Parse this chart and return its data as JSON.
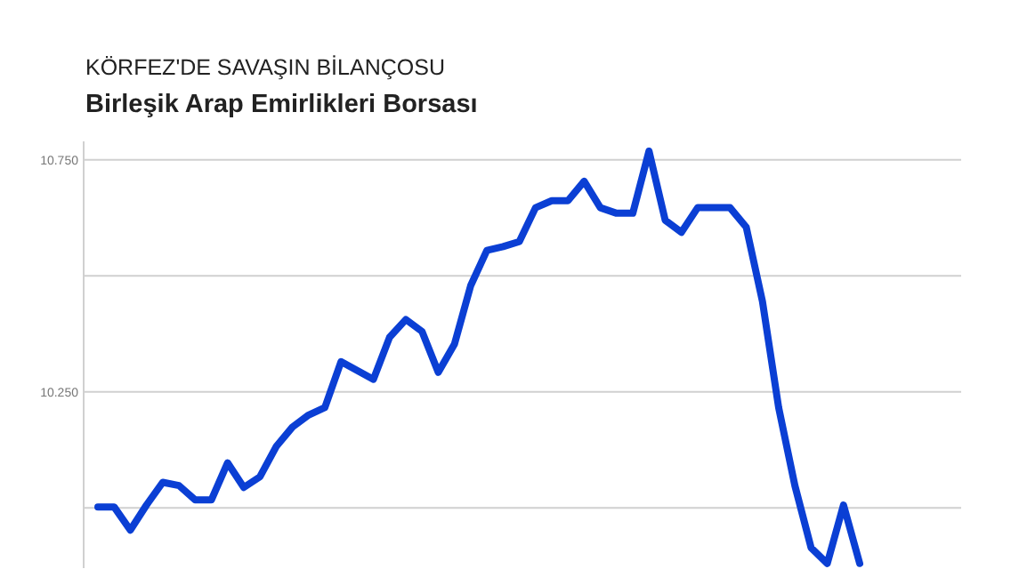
{
  "chart_data": {
    "type": "line",
    "title": "Birleşik Arap Emirlikleri Borsası",
    "subtitle": "KÖRFEZ'DE SAVAŞIN BİLANÇOSU",
    "categories": [
      null,
      null,
      null,
      null,
      null,
      null,
      null,
      null,
      null,
      null,
      null,
      null,
      null,
      null,
      null,
      null,
      null,
      null,
      null,
      null,
      null,
      null,
      null,
      null,
      null,
      null,
      null,
      null,
      null,
      null,
      null,
      null,
      null,
      null,
      null,
      null,
      null,
      null,
      null,
      null,
      null,
      null,
      null,
      null,
      null,
      null,
      null,
      null
    ],
    "series": [
      {
        "color": "#0b3fd4",
        "values": [
          10002,
          10002,
          9952,
          10006,
          10055,
          10048,
          10017,
          10017,
          10097,
          10044,
          10067,
          10132,
          10174,
          10200,
          10216,
          10315,
          10296,
          10277,
          10368,
          10406,
          10380,
          10292,
          10353,
          10479,
          10555,
          10563,
          10574,
          10647,
          10662,
          10662,
          10704,
          10647,
          10635,
          10635,
          10769,
          10620,
          10594,
          10647,
          10647,
          10647,
          10605,
          10445,
          10216,
          10048,
          9914,
          9880,
          10006,
          9880
        ]
      }
    ],
    "ylim": [
      9870,
      10790
    ],
    "yticks": [
      {
        "value": 10000,
        "label": null
      },
      {
        "value": 10250,
        "label": "10.250"
      },
      {
        "value": 10500,
        "label": null
      },
      {
        "value": 10750,
        "label": "10.750"
      }
    ],
    "grid": true,
    "tick_labels": "y",
    "marker": "none",
    "line_style": "solid"
  }
}
